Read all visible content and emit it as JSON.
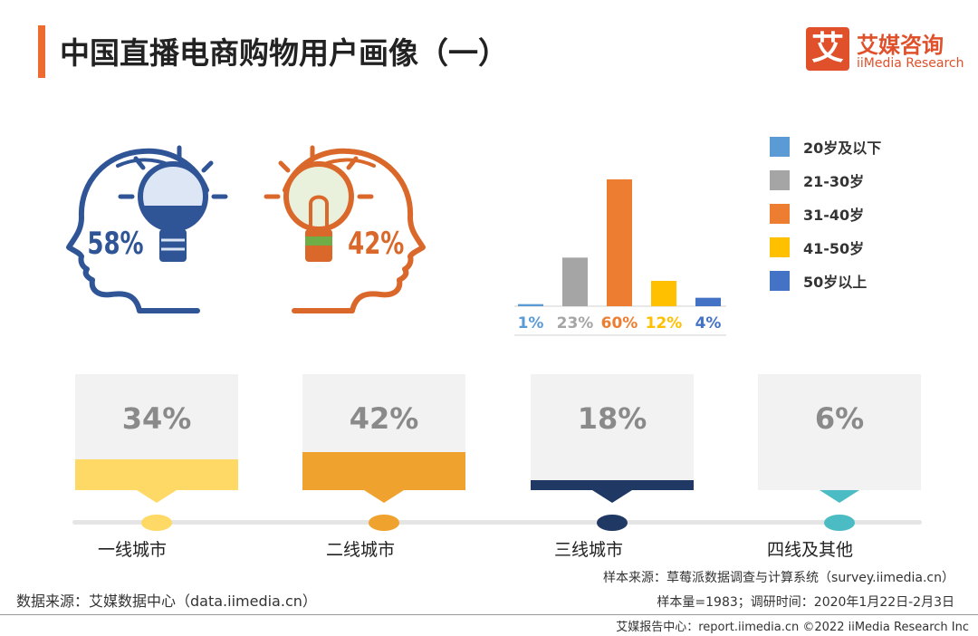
{
  "header": {
    "title": "中国直播电商购物用户画像（一）",
    "logo_mark": "艾",
    "logo_cn": "艾媒咨询",
    "logo_en": "iiMedia Research"
  },
  "gender": {
    "male_pct": "58%",
    "female_pct": "42%",
    "male_color": "#2f5597",
    "female_color": "#d9682a"
  },
  "chart_data": [
    {
      "type": "bar",
      "categories": [
        "20岁及以下",
        "21-30岁",
        "31-40岁",
        "41-50岁",
        "50岁以上"
      ],
      "values": [
        1,
        23,
        60,
        12,
        4
      ],
      "value_labels": [
        "1%",
        "23%",
        "60%",
        "12%",
        "4%"
      ],
      "colors": [
        "#5b9bd5",
        "#a5a5a5",
        "#ed7d31",
        "#ffc000",
        "#4472c4"
      ],
      "ylim": [
        0,
        60
      ],
      "legend": "right"
    },
    {
      "type": "bar",
      "categories": [
        "一线城市",
        "二线城市",
        "三线城市",
        "四线及其他"
      ],
      "values": [
        34,
        42,
        18,
        6
      ],
      "value_labels": [
        "34%",
        "42%",
        "18%",
        "6%"
      ],
      "colors": [
        "#ffd966",
        "#f0a22e",
        "#1f3864",
        "#4bbcc4"
      ],
      "ylim": [
        0,
        100
      ]
    }
  ],
  "footnotes": {
    "sample_source": "样本来源：草莓派数据调查与计算系统（survey.iimedia.cn）",
    "sample_size": "样本量=1983；调研时间：2020年1月22日-2月3日",
    "data_source": "数据来源：艾媒数据中心（data.iimedia.cn）",
    "footer": "艾媒报告中心：report.iimedia.cn   ©2022  iiMedia Research  Inc"
  }
}
